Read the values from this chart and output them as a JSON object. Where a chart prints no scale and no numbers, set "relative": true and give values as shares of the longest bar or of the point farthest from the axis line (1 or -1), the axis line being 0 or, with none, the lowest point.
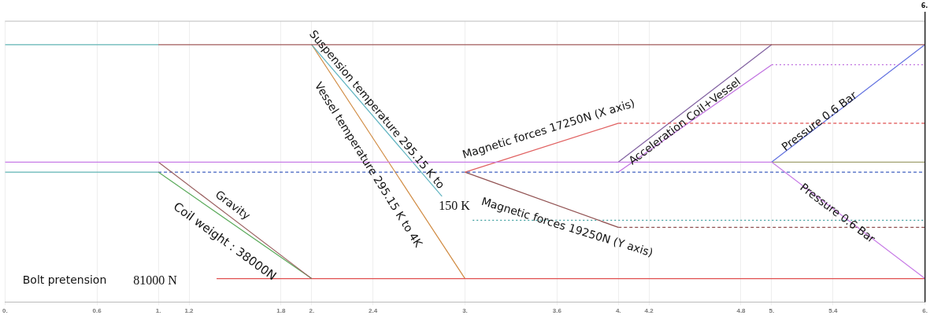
{
  "chart_data": {
    "type": "line",
    "relative": true,
    "marker": "none",
    "grid": "x",
    "legend": false,
    "xlim": [
      0,
      6
    ],
    "xticks": [
      {
        "value": 0,
        "label": "0."
      },
      0.6,
      {
        "value": 1,
        "label": "1."
      },
      1.2,
      1.8,
      {
        "value": 2,
        "label": "2."
      },
      2.4,
      {
        "value": 3,
        "label": "3."
      },
      3.6,
      {
        "value": 4,
        "label": "4."
      },
      4.2,
      4.8,
      {
        "value": 5,
        "label": "5."
      },
      5.4,
      {
        "value": 6,
        "label": "6."
      }
    ],
    "series": [
      {
        "color": "#5fb3b3",
        "x": [
          0,
          1
        ],
        "values": [
          1,
          1
        ]
      },
      {
        "color": "#a05a5a",
        "x": [
          1,
          6
        ],
        "values": [
          1,
          1
        ]
      },
      {
        "color": "#c77be6",
        "x": [
          0,
          5,
          6
        ],
        "values": [
          0.498,
          0.498,
          0
        ]
      },
      {
        "color": "#9a6060",
        "x": [
          1,
          2
        ],
        "values": [
          0.498,
          0
        ]
      },
      {
        "color": "#5fb3b3",
        "x": [
          0,
          1
        ],
        "values": [
          0.455,
          0.455
        ]
      },
      {
        "color": "#5aaa5a",
        "x": [
          1,
          2
        ],
        "values": [
          0.455,
          0
        ]
      },
      {
        "color": "#4060c0",
        "x": [
          1,
          6
        ],
        "values": [
          0.455,
          0.455
        ],
        "line_style": "dashed"
      },
      {
        "color": "#e05050",
        "x": [
          1.38,
          6
        ],
        "values": [
          0,
          0
        ]
      },
      {
        "color": "#5fb3c0",
        "x": [
          2,
          2.85
        ],
        "values": [
          1,
          0.352
        ]
      },
      {
        "color": "#d08a40",
        "x": [
          2,
          3
        ],
        "values": [
          1,
          0
        ]
      },
      {
        "color": "#e06060",
        "x": [
          3,
          4
        ],
        "values": [
          0.455,
          0.664
        ]
      },
      {
        "color": "#e05050",
        "x": [
          4,
          6
        ],
        "values": [
          0.664,
          0.664
        ],
        "line_style": "dashed"
      },
      {
        "color": "#905050",
        "x": [
          3,
          4
        ],
        "values": [
          0.455,
          0.219
        ]
      },
      {
        "color": "#905050",
        "x": [
          4,
          6
        ],
        "values": [
          0.219,
          0.219
        ],
        "line_style": "dashed"
      },
      {
        "color": "#40a0a0",
        "x": [
          3.05,
          6
        ],
        "values": [
          0.249,
          0.249
        ],
        "line_style": "dotted"
      },
      {
        "color": "#8060a0",
        "x": [
          4,
          5
        ],
        "values": [
          0.498,
          1
        ]
      },
      {
        "color": "#c070e0",
        "x": [
          4,
          5
        ],
        "values": [
          0.455,
          0.914
        ]
      },
      {
        "color": "#c070e0",
        "x": [
          5,
          6
        ],
        "values": [
          0.914,
          0.914
        ],
        "line_style": "dotted"
      },
      {
        "color": "#6070e0",
        "x": [
          5,
          6
        ],
        "values": [
          0.498,
          1
        ]
      },
      {
        "color": "#a0a070",
        "x": [
          5,
          6
        ],
        "values": [
          0.498,
          0.498
        ]
      }
    ],
    "annotations": [
      "Bolt pretension",
      "81000 N",
      "Gravity",
      "Coil weight : 38000N",
      "Suspension temperature 295.15 K to",
      "150 K",
      "Vessel temperature 295.15 K to 4K",
      "Magnetic forces 17250N (X axis)",
      "Magnetic forces 19250N (Y axis)",
      "Acceleration Coil+Vessel",
      "Pressure 0.6 Bar",
      "Pressure 0.6 Bar",
      "6."
    ]
  }
}
